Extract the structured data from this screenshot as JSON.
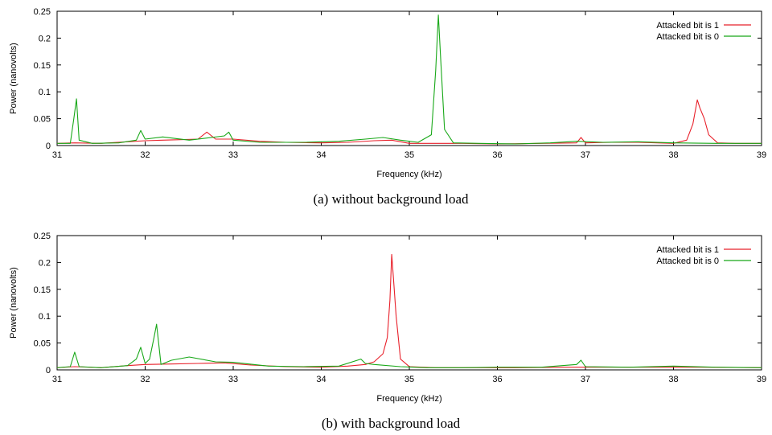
{
  "chart_data": [
    {
      "type": "line",
      "caption": "(a) without background load",
      "xlabel": "Frequency (kHz)",
      "ylabel": "Power (nanovolts)",
      "xlim": [
        31,
        39
      ],
      "ylim": [
        0,
        0.25
      ],
      "xticks": [
        "31",
        "32",
        "33",
        "34",
        "35",
        "36",
        "37",
        "38",
        "39"
      ],
      "yticks": [
        "0",
        "0.05",
        "0.1",
        "0.15",
        "0.2",
        "0.25"
      ],
      "legend_position": "top-right",
      "colors": {
        "bit1": "#e8202a",
        "bit0": "#18a818"
      },
      "series": [
        {
          "name": "Attacked bit is 1",
          "color": "#e8202a",
          "x": [
            31.0,
            31.2,
            31.5,
            31.8,
            32.0,
            32.2,
            32.4,
            32.6,
            32.7,
            32.8,
            33.0,
            33.3,
            33.6,
            34.0,
            34.3,
            34.6,
            34.8,
            35.0,
            35.3,
            35.6,
            36.0,
            36.5,
            36.9,
            36.95,
            37.0,
            37.3,
            37.6,
            38.0,
            38.15,
            38.22,
            38.27,
            38.3,
            38.35,
            38.4,
            38.5,
            38.7,
            39.0
          ],
          "y": [
            0.004,
            0.005,
            0.004,
            0.007,
            0.009,
            0.01,
            0.011,
            0.012,
            0.025,
            0.012,
            0.012,
            0.008,
            0.006,
            0.005,
            0.006,
            0.009,
            0.01,
            0.004,
            0.004,
            0.004,
            0.003,
            0.004,
            0.005,
            0.015,
            0.005,
            0.006,
            0.006,
            0.004,
            0.01,
            0.04,
            0.085,
            0.07,
            0.05,
            0.02,
            0.005,
            0.004,
            0.004
          ]
        },
        {
          "name": "Attacked bit is 0",
          "color": "#18a818",
          "x": [
            31.0,
            31.15,
            31.19,
            31.22,
            31.25,
            31.4,
            31.7,
            31.9,
            31.95,
            32.0,
            32.2,
            32.5,
            32.9,
            32.95,
            33.0,
            33.3,
            33.8,
            34.2,
            34.5,
            34.7,
            34.9,
            35.1,
            35.25,
            35.3,
            35.33,
            35.36,
            35.4,
            35.5,
            35.8,
            36.2,
            36.6,
            36.9,
            37.2,
            37.6,
            38.0,
            38.5,
            39.0
          ],
          "y": [
            0.004,
            0.004,
            0.05,
            0.087,
            0.01,
            0.004,
            0.005,
            0.01,
            0.028,
            0.012,
            0.016,
            0.01,
            0.018,
            0.025,
            0.01,
            0.006,
            0.006,
            0.008,
            0.012,
            0.015,
            0.01,
            0.006,
            0.02,
            0.14,
            0.243,
            0.15,
            0.03,
            0.005,
            0.004,
            0.003,
            0.005,
            0.008,
            0.006,
            0.007,
            0.005,
            0.004,
            0.004
          ]
        }
      ]
    },
    {
      "type": "line",
      "caption": "(b) with background load",
      "xlabel": "Frequency (kHz)",
      "ylabel": "Power (nanovolts)",
      "xlim": [
        31,
        39
      ],
      "ylim": [
        0,
        0.25
      ],
      "xticks": [
        "31",
        "32",
        "33",
        "34",
        "35",
        "36",
        "37",
        "38",
        "39"
      ],
      "yticks": [
        "0",
        "0.05",
        "0.1",
        "0.15",
        "0.2",
        "0.25"
      ],
      "legend_position": "top-right",
      "colors": {
        "bit1": "#e8202a",
        "bit0": "#18a818"
      },
      "series": [
        {
          "name": "Attacked bit is 1",
          "color": "#e8202a",
          "x": [
            31.0,
            31.2,
            31.5,
            31.8,
            32.0,
            32.3,
            32.6,
            32.9,
            33.2,
            33.6,
            34.0,
            34.3,
            34.5,
            34.6,
            34.7,
            34.75,
            34.78,
            34.8,
            34.82,
            34.85,
            34.9,
            35.0,
            35.3,
            35.7,
            36.2,
            36.8,
            37.3,
            37.8,
            38.3,
            39.0
          ],
          "y": [
            0.004,
            0.006,
            0.004,
            0.008,
            0.01,
            0.011,
            0.012,
            0.013,
            0.009,
            0.006,
            0.005,
            0.007,
            0.01,
            0.015,
            0.03,
            0.06,
            0.13,
            0.215,
            0.17,
            0.1,
            0.02,
            0.006,
            0.004,
            0.004,
            0.004,
            0.005,
            0.005,
            0.005,
            0.005,
            0.004
          ]
        },
        {
          "name": "Attacked bit is 0",
          "color": "#18a818",
          "x": [
            31.0,
            31.15,
            31.2,
            31.25,
            31.5,
            31.8,
            31.9,
            31.95,
            32.0,
            32.05,
            32.1,
            32.13,
            32.18,
            32.3,
            32.5,
            32.8,
            33.0,
            33.4,
            33.8,
            34.2,
            34.45,
            34.5,
            34.6,
            34.9,
            35.2,
            35.6,
            36.0,
            36.5,
            36.9,
            36.95,
            37.0,
            37.5,
            38.0,
            38.5,
            39.0
          ],
          "y": [
            0.004,
            0.006,
            0.033,
            0.006,
            0.004,
            0.008,
            0.02,
            0.042,
            0.012,
            0.02,
            0.06,
            0.085,
            0.01,
            0.018,
            0.024,
            0.015,
            0.014,
            0.007,
            0.006,
            0.007,
            0.02,
            0.012,
            0.01,
            0.006,
            0.004,
            0.004,
            0.005,
            0.005,
            0.01,
            0.018,
            0.006,
            0.005,
            0.007,
            0.005,
            0.004
          ]
        }
      ]
    }
  ]
}
